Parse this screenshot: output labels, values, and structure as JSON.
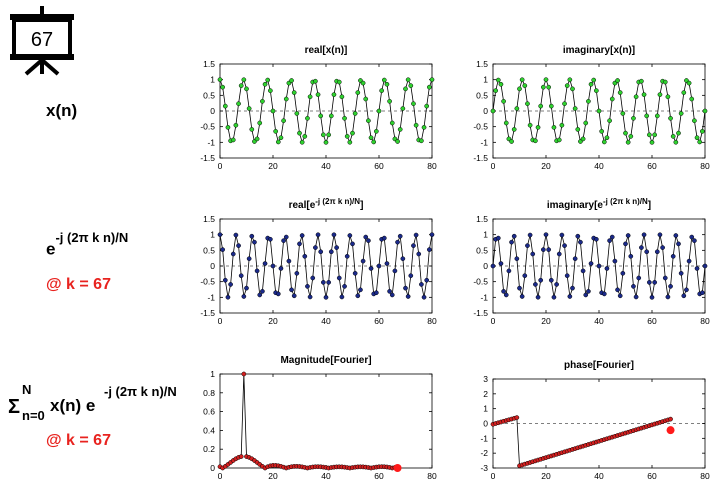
{
  "slide_badge": {
    "number": "67"
  },
  "labels": {
    "xn": "x(n)",
    "kernel_base": "e",
    "kernel_exp": "-j (2π k n)/N",
    "k_note_1": "@ k = 67",
    "sum_symbol": "Σ",
    "sum_upper": "N",
    "sum_lower": "n=0",
    "sum_body": "x(n) e",
    "sum_exp": "-j (2π k n)/N",
    "k_note_2": "@ k = 67"
  },
  "colors": {
    "green": "#2fd12f",
    "blue": "#1b2a8a",
    "red": "#d42020",
    "dark_red": "#8b1a1a",
    "highlight": "#ff1a1a"
  },
  "chart_data": [
    {
      "id": "real-x",
      "type": "line",
      "title": "real[x(n)]",
      "title_sup": "",
      "title_tail": "",
      "xlim": [
        0,
        80
      ],
      "ylim": [
        -1.5,
        1.5
      ],
      "xticks": [
        "0",
        "20",
        "40",
        "60",
        "80"
      ],
      "yticks": [
        "1.5",
        "1",
        "0.5",
        "0",
        "-0.5",
        "-1",
        "-1.5"
      ],
      "series": [
        {
          "func": "cos",
          "k": 9,
          "N": 80,
          "n": [
            0,
            80
          ],
          "marker_color": "#2fd12f"
        }
      ]
    },
    {
      "id": "imag-x",
      "type": "line",
      "title": "imaginary[x(n)]",
      "title_sup": "",
      "title_tail": "",
      "xlim": [
        0,
        80
      ],
      "ylim": [
        -1.5,
        1.5
      ],
      "xticks": [
        "0",
        "20",
        "40",
        "60",
        "80"
      ],
      "yticks": [
        "1.5",
        "1",
        "0.5",
        "0",
        "-0.5",
        "-1",
        "-1.5"
      ],
      "series": [
        {
          "func": "sin",
          "k": 9,
          "N": 80,
          "n": [
            0,
            80
          ],
          "marker_color": "#2fd12f"
        }
      ]
    },
    {
      "id": "real-e",
      "type": "line",
      "title": "real[e",
      "title_sup": "-j (2π k n)/N",
      "title_tail": "]",
      "xlim": [
        0,
        80
      ],
      "ylim": [
        -1.5,
        1.5
      ],
      "xticks": [
        "0",
        "20",
        "40",
        "60",
        "80"
      ],
      "yticks": [
        "1.5",
        "1",
        "0.5",
        "0",
        "-0.5",
        "-1",
        "-1.5"
      ],
      "series": [
        {
          "func": "cos",
          "k": 67,
          "N": 80,
          "n": [
            0,
            80
          ],
          "marker_color": "#1b2a8a"
        }
      ]
    },
    {
      "id": "imag-e",
      "type": "line",
      "title": "imaginary[e",
      "title_sup": "-j (2π k n)/N",
      "title_tail": "]",
      "xlim": [
        0,
        80
      ],
      "ylim": [
        -1.5,
        1.5
      ],
      "xticks": [
        "0",
        "20",
        "40",
        "60",
        "80"
      ],
      "yticks": [
        "1.5",
        "1",
        "0.5",
        "0",
        "-0.5",
        "-1",
        "-1.5"
      ],
      "series": [
        {
          "func": "-sin",
          "k": 67,
          "N": 80,
          "n": [
            0,
            80
          ],
          "marker_color": "#1b2a8a"
        }
      ]
    },
    {
      "id": "mag",
      "type": "line",
      "title": "Magnitude[Fourier]",
      "title_sup": "",
      "title_tail": "",
      "xlim": [
        0,
        80
      ],
      "ylim": [
        0,
        1
      ],
      "xticks": [
        "0",
        "20",
        "40",
        "60",
        "80"
      ],
      "yticks": [
        "1",
        "0.8",
        "0.6",
        "0.4",
        "0.2",
        "0"
      ],
      "series": [
        {
          "func": "magnitude",
          "k": 9,
          "N": 80,
          "n": [
            0,
            67
          ],
          "marker_color": "#d42020"
        }
      ],
      "highlight": {
        "x": 67,
        "y": 0.0
      }
    },
    {
      "id": "phase",
      "type": "line",
      "title": "phase[Fourier]",
      "title_sup": "",
      "title_tail": "",
      "xlim": [
        0,
        80
      ],
      "ylim": [
        -3,
        3
      ],
      "xticks": [
        "0",
        "20",
        "40",
        "60",
        "80"
      ],
      "yticks": [
        "3",
        "2",
        "1",
        "0",
        "-1",
        "-2",
        "-3"
      ],
      "series": [
        {
          "func": "phase",
          "k": 9,
          "N": 80,
          "n": [
            0,
            67
          ],
          "marker_color": "#d42020"
        }
      ],
      "highlight": {
        "x": 67,
        "y": -0.45
      }
    }
  ]
}
